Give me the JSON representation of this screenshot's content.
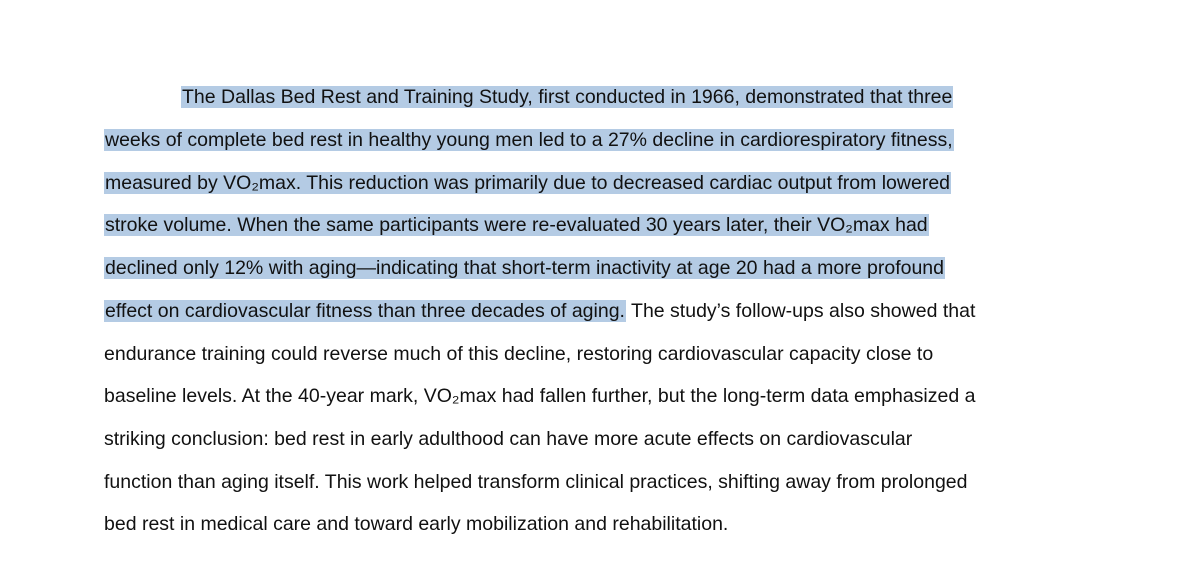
{
  "document": {
    "paragraph": {
      "lines": [
        "The Dallas Bed Rest and Training Study, first conducted in 1966, demonstrated that three",
        "weeks of complete bed rest in healthy young men led to a 27% decline in cardiorespiratory fitness,",
        "measured by VO₂max. This reduction was primarily due to decreased cardiac output from lowered",
        "stroke volume. When the same participants were re-evaluated 30 years later, their VO₂max had",
        "declined only 12% with aging—indicating that short-term inactivity at age 20 had a more profound",
        "effect on cardiovascular fitness than three decades of aging.",
        " The study’s follow-ups also showed that",
        "endurance training could reverse much of this decline, restoring cardiovascular capacity close to",
        "baseline levels. At the 40-year mark, VO₂max had fallen further, but the long-term data emphasized a",
        "striking conclusion: bed rest in early adulthood can have more acute effects on cardiovascular",
        "function than aging itself. This work helped transform clinical practices, shifting away from prolonged",
        "bed rest in medical care and toward early mobilization and rehabilitation."
      ]
    },
    "highlight_color": "#b4cbe4"
  }
}
